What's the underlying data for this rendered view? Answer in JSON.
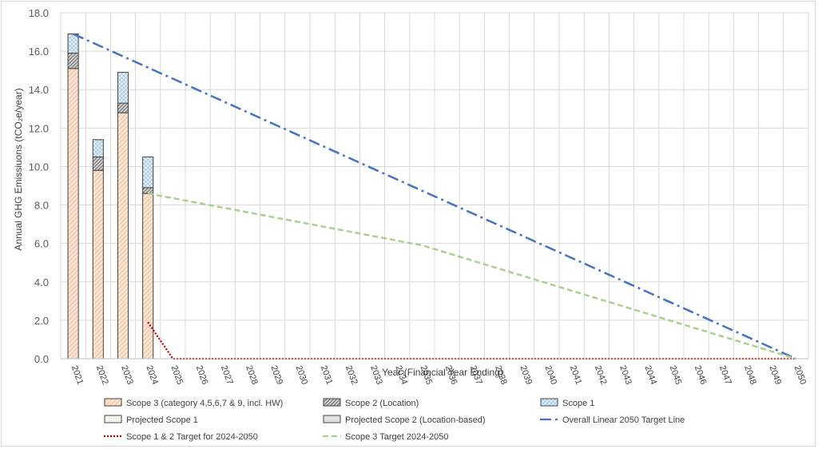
{
  "chart_data": {
    "type": "bar",
    "title": "",
    "xlabel": "Year (Financial Year Ending)",
    "ylabel": "Annual GHG Emissiuons (tCO₂e/year)",
    "ylim": [
      0,
      18
    ],
    "y_ticks": [
      "0.0",
      "2.0",
      "4.0",
      "6.0",
      "8.0",
      "10.0",
      "12.0",
      "14.0",
      "16.0",
      "18.0"
    ],
    "grid": true,
    "legend_position": "bottom",
    "categories": [
      "2021",
      "2022",
      "2023",
      "2024",
      "2025",
      "2026",
      "2027",
      "2028",
      "2029",
      "2030",
      "2031",
      "2032",
      "2033",
      "2034",
      "2035",
      "2036",
      "2037",
      "2038",
      "2039",
      "2040",
      "2041",
      "2042",
      "2043",
      "2044",
      "2045",
      "2046",
      "2047",
      "2048",
      "2049",
      "2050"
    ],
    "stacked_series": [
      {
        "name": "Scope 3 (category 4,5,6,7 & 9, incl. HW)",
        "pattern": "diag-orange",
        "values": [
          15.1,
          9.8,
          12.8,
          8.6
        ]
      },
      {
        "name": "Scope 2 (Location)",
        "pattern": "diag-dark",
        "values": [
          0.8,
          0.7,
          0.5,
          0.3
        ]
      },
      {
        "name": "Scope 1",
        "pattern": "cross-blue",
        "values": [
          1.0,
          0.9,
          1.6,
          1.6
        ]
      },
      {
        "name": "Projected Scope 1",
        "pattern": "dots-light",
        "values": []
      },
      {
        "name": "Projected Scope 2 (Location-based)",
        "pattern": "solid-grey",
        "values": []
      }
    ],
    "line_series": [
      {
        "name": "Overall Linear 2050 Target Line",
        "color": "#4472c4",
        "dash": "dashdot",
        "points": [
          [
            "2021",
            16.9
          ],
          [
            "2050",
            0.0
          ]
        ]
      },
      {
        "name": "Scope 1 & 2 Target for 2024-2050",
        "color": "#c00000",
        "dash": "dot",
        "points": [
          [
            "2024",
            1.9
          ],
          [
            "2025",
            0.0
          ],
          [
            "2050",
            0.0
          ]
        ]
      },
      {
        "name": "Scope 3 Target 2024-2050",
        "color": "#a9d18e",
        "dash": "dash",
        "points": [
          [
            "2024",
            8.6
          ],
          [
            "2035",
            5.9
          ],
          [
            "2050",
            0.0
          ]
        ]
      }
    ],
    "legend": [
      {
        "name": "Scope 3 (category 4,5,6,7 & 9, incl. HW)",
        "kind": "box",
        "pattern": "diag-orange"
      },
      {
        "name": "Scope 2 (Location)",
        "kind": "box",
        "pattern": "diag-dark"
      },
      {
        "name": "Scope 1",
        "kind": "box",
        "pattern": "cross-blue"
      },
      {
        "name": "Projected Scope 1",
        "kind": "box",
        "pattern": "dots-light"
      },
      {
        "name": "Projected Scope 2 (Location-based)",
        "kind": "box",
        "pattern": "solid-grey"
      },
      {
        "name": "Overall Linear 2050 Target Line",
        "kind": "line",
        "color": "#4472c4",
        "dash": "dashdot"
      },
      {
        "name": "Scope 1 & 2 Target for 2024-2050",
        "kind": "line",
        "color": "#c00000",
        "dash": "dot"
      },
      {
        "name": "Scope 3 Target 2024-2050",
        "kind": "line",
        "color": "#a9d18e",
        "dash": "dash"
      }
    ]
  }
}
